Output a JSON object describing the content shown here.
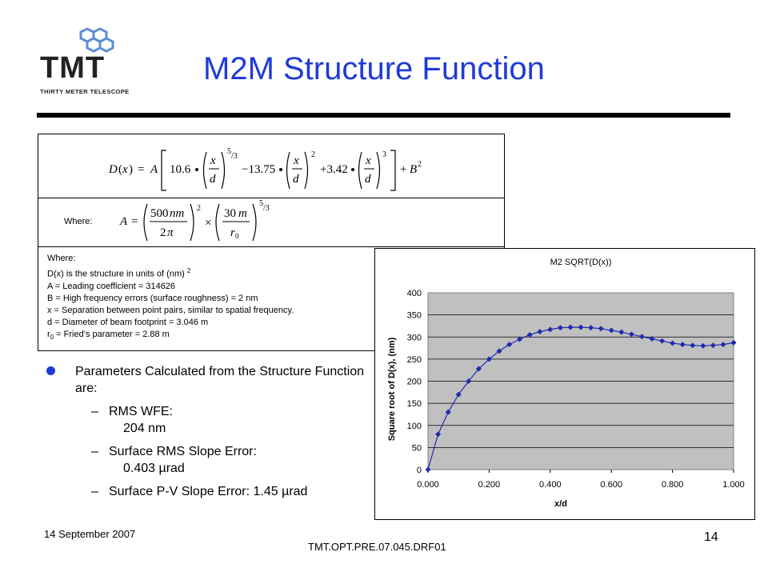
{
  "logo": {
    "text": "TMT",
    "subtitle": "THIRTY METER TELESCOPE"
  },
  "title": "M2M Structure Function",
  "equation": {
    "where_label": "Where:"
  },
  "definitions": {
    "where": "Where:",
    "d_x": "D(x) is the structure in units of (nm)",
    "d_x_sup": "2",
    "a": "A = Leading coefficient = 314626",
    "b": "B = High frequency errors (surface roughness) = 2 nm",
    "x": "x = Separation between point pairs, similar to spatial frequency.",
    "d": "d = Diameter of beam footprint = 3.046 m",
    "r0_prefix": "r",
    "r0_sub": "0",
    "r0_rest": " = Fried’s parameter = 2.88 m"
  },
  "bullets": {
    "main": "Parameters Calculated from the Structure Function are:",
    "items": [
      {
        "label": "RMS WFE:",
        "value": "204 nm"
      },
      {
        "label": "Surface RMS Slope Error:",
        "value": "0.403 µrad"
      },
      {
        "label": "Surface P-V Slope Error: 1.45 µrad",
        "value": ""
      }
    ]
  },
  "chart_data": {
    "type": "line",
    "title": "M2 SQRT(D(x))",
    "xlabel": "x/d",
    "ylabel": "Square root of D(x), (nm)",
    "xlim": [
      0,
      1
    ],
    "ylim": [
      0,
      400
    ],
    "xticks": [
      "0.000",
      "0.200",
      "0.400",
      "0.600",
      "0.800",
      "1.000"
    ],
    "yticks": [
      "0",
      "50",
      "100",
      "150",
      "200",
      "250",
      "300",
      "350",
      "400"
    ],
    "plot_bg": "#c0c0c0",
    "line_color": "#1f2bb0",
    "series": [
      {
        "x": [
          0.0,
          0.033,
          0.066,
          0.1,
          0.133,
          0.166,
          0.2,
          0.233,
          0.266,
          0.3,
          0.333,
          0.366,
          0.4,
          0.433,
          0.466,
          0.5,
          0.533,
          0.566,
          0.6,
          0.633,
          0.666,
          0.7,
          0.733,
          0.766,
          0.8,
          0.833,
          0.866,
          0.9,
          0.933,
          0.966,
          1.0
        ],
        "y": [
          0,
          80,
          130,
          170,
          200,
          228,
          250,
          268,
          283,
          295,
          305,
          312,
          317,
          321,
          322,
          322,
          321,
          319,
          315,
          311,
          306,
          301,
          296,
          291,
          286,
          283,
          281,
          280,
          281,
          283,
          287
        ]
      }
    ]
  },
  "footer": {
    "date": "14 September 2007",
    "doc_id": "TMT.OPT.PRE.07.045.DRF01",
    "page": "14"
  }
}
